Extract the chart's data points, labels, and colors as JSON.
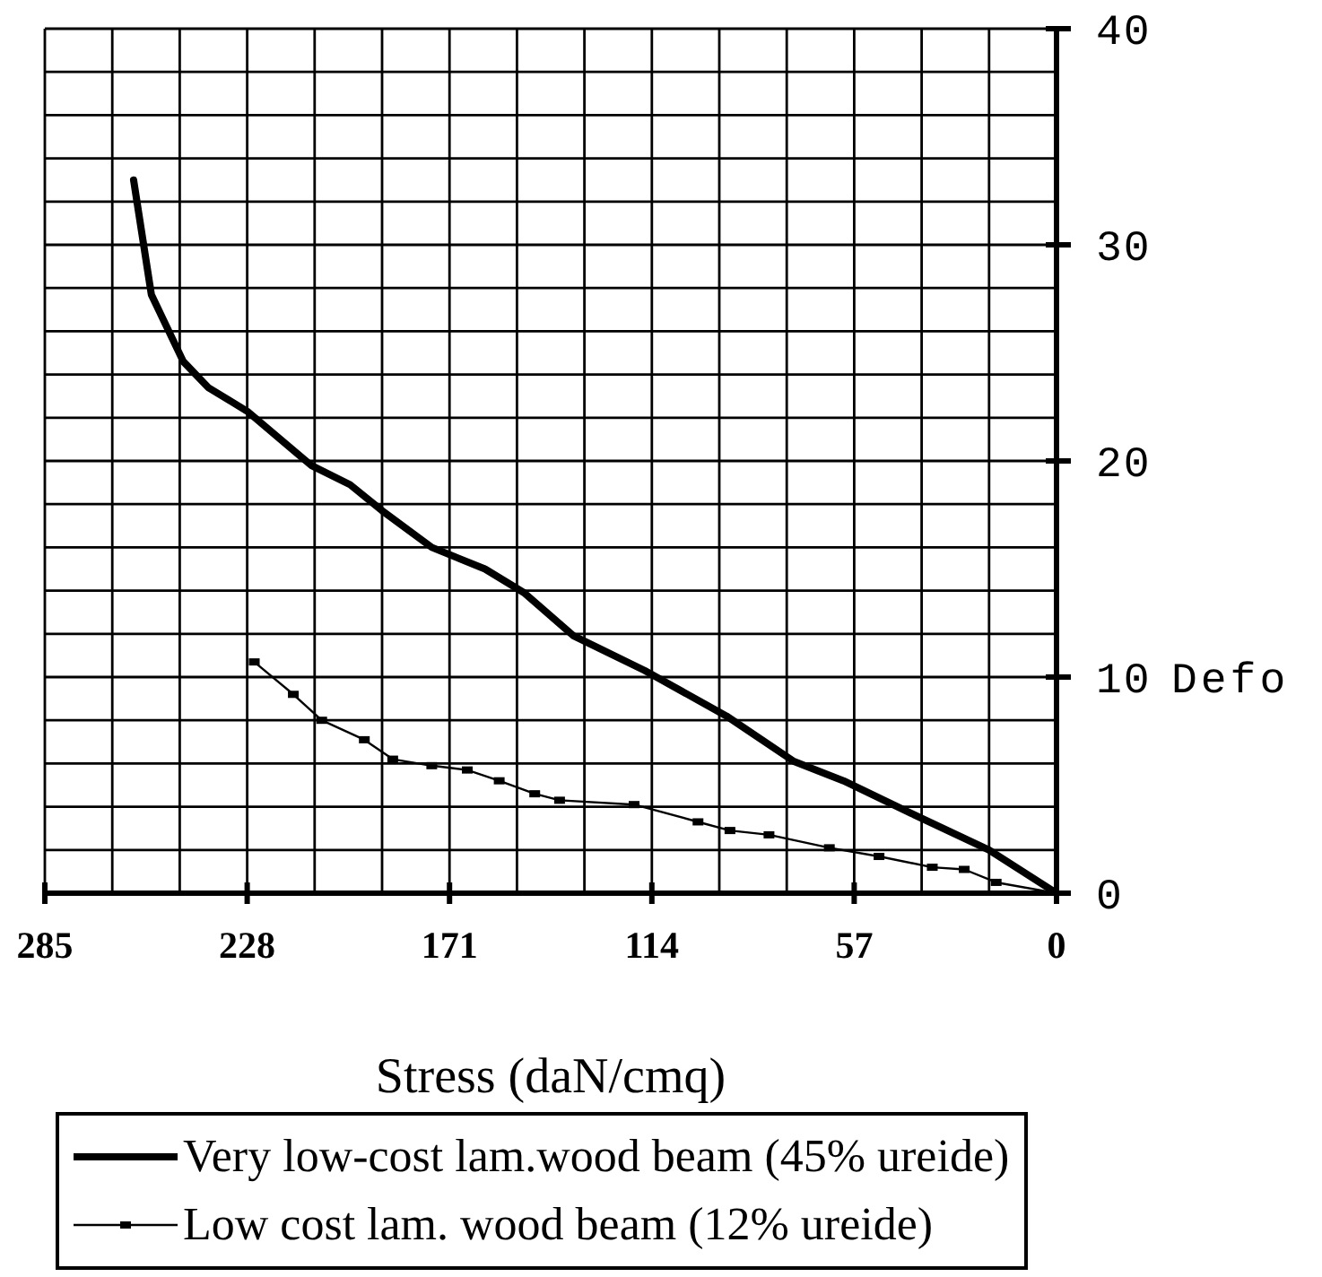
{
  "chart_data": {
    "type": "line",
    "xlabel": "Stress (daN/cmq)",
    "ylabel": "Defo",
    "xlim": [
      285,
      0
    ],
    "xticks": [
      285,
      {
        "value": 266,
        "label": null
      },
      {
        "value": 247,
        "label": null
      },
      228,
      {
        "value": 209,
        "label": null
      },
      {
        "value": 190,
        "label": null
      },
      171,
      {
        "value": 152,
        "label": null
      },
      {
        "value": 133,
        "label": null
      },
      114,
      {
        "value": 95,
        "label": null
      },
      {
        "value": 76,
        "label": null
      },
      57,
      {
        "value": 38,
        "label": null
      },
      {
        "value": 19,
        "label": null
      },
      0
    ],
    "ylim": [
      0,
      40
    ],
    "yticks": [
      0,
      {
        "value": 2,
        "label": null
      },
      {
        "value": 4,
        "label": null
      },
      {
        "value": 6,
        "label": null
      },
      {
        "value": 8,
        "label": null
      },
      10,
      {
        "value": 12,
        "label": null
      },
      {
        "value": 14,
        "label": null
      },
      {
        "value": 16,
        "label": null
      },
      {
        "value": 18,
        "label": null
      },
      20,
      {
        "value": 22,
        "label": null
      },
      {
        "value": 24,
        "label": null
      },
      {
        "value": 26,
        "label": null
      },
      {
        "value": 28,
        "label": null
      },
      30,
      {
        "value": 32,
        "label": null
      },
      {
        "value": 34,
        "label": null
      },
      {
        "value": 36,
        "label": null
      },
      {
        "value": 38,
        "label": null
      },
      40
    ],
    "grid": true,
    "legend": "bottom",
    "marker": "none",
    "line_style": "solid",
    "series": [
      {
        "name": "Very low-cost lam.wood beam (45% ureide)",
        "color": "#000000",
        "x": [
          260,
          255,
          246,
          239,
          228,
          210,
          199,
          190,
          176,
          161,
          150,
          136,
          116,
          93,
          74,
          60,
          41,
          19,
          0
        ],
        "values": [
          33.0,
          27.7,
          24.6,
          23.4,
          22.3,
          19.8,
          18.9,
          17.7,
          16.0,
          15.0,
          13.9,
          11.9,
          10.3,
          8.2,
          6.1,
          5.2,
          3.7,
          2.0,
          0
        ]
      },
      {
        "name": "Low cost lam. wood beam (12% ureide)",
        "color": "#000000",
        "marker": "square",
        "x": [
          226,
          215,
          207,
          195,
          187,
          176,
          166,
          157,
          147,
          140,
          119,
          101,
          92,
          81,
          64,
          50,
          35,
          26,
          17,
          0
        ],
        "values": [
          10.7,
          9.2,
          8.0,
          7.1,
          6.2,
          5.9,
          5.7,
          5.2,
          4.6,
          4.3,
          4.1,
          3.3,
          2.9,
          2.7,
          2.1,
          1.7,
          1.2,
          1.1,
          0.5,
          0
        ]
      }
    ]
  }
}
